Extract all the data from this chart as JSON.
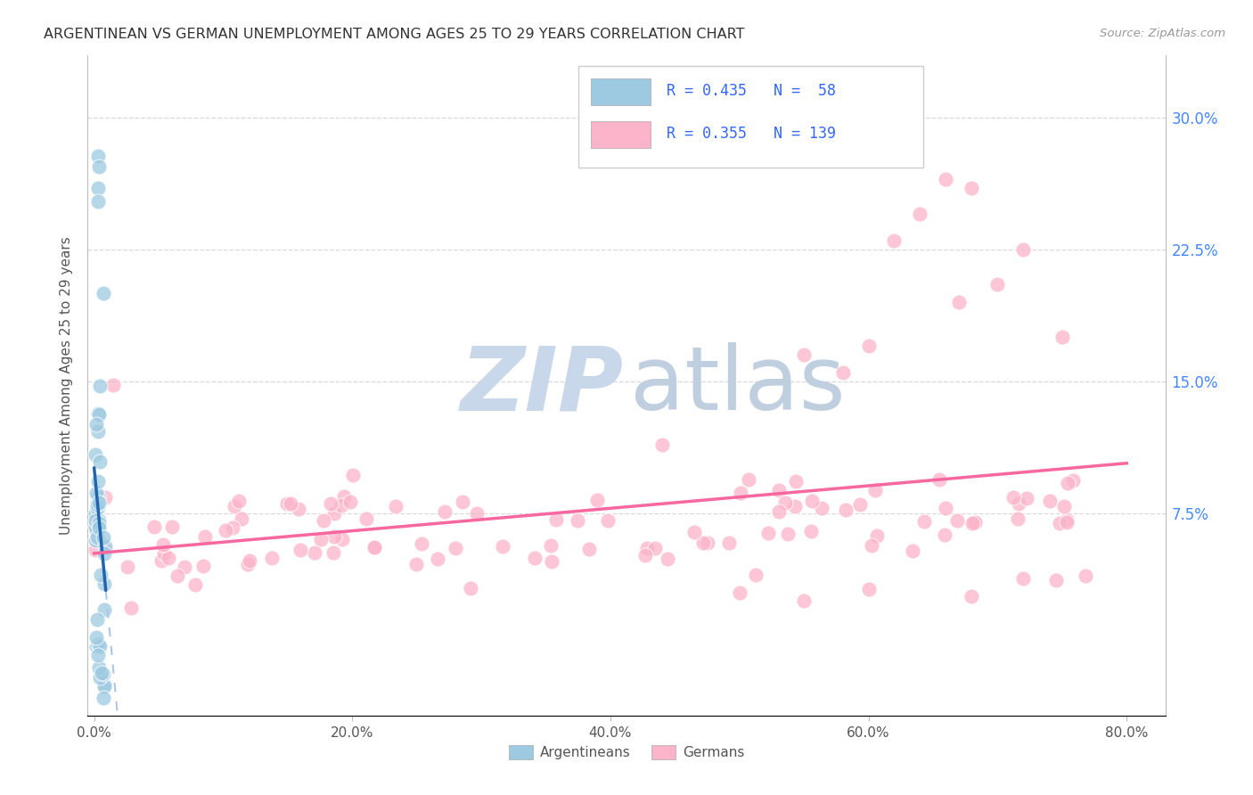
{
  "title": "ARGENTINEAN VS GERMAN UNEMPLOYMENT AMONG AGES 25 TO 29 YEARS CORRELATION CHART",
  "source": "Source: ZipAtlas.com",
  "ylabel": "Unemployment Among Ages 25 to 29 years",
  "xlim": [
    -0.005,
    0.83
  ],
  "ylim": [
    -0.04,
    0.335
  ],
  "xtick_vals": [
    0.0,
    0.2,
    0.4,
    0.6,
    0.8
  ],
  "xtick_labels": [
    "0.0%",
    "20.0%",
    "40.0%",
    "60.0%",
    "80.0%"
  ],
  "ytick_vals": [
    0.075,
    0.15,
    0.225,
    0.3
  ],
  "ytick_labels": [
    "7.5%",
    "15.0%",
    "22.5%",
    "30.0%"
  ],
  "legend_blue_r": "R = 0.435",
  "legend_blue_n": "N =  58",
  "legend_pink_r": "R = 0.355",
  "legend_pink_n": "N = 139",
  "blue_color": "#9ecae1",
  "pink_color": "#fbb4c9",
  "blue_line_color": "#2166ac",
  "pink_line_color": "#f768a1",
  "blue_dashed_color": "#aec6e8",
  "watermark_zip_color": "#c8d8ea",
  "watermark_atlas_color": "#c0cfe0",
  "title_color": "#333333",
  "source_color": "#999999",
  "ylabel_color": "#555555",
  "tick_color": "#555555",
  "right_tick_color": "#4488ff",
  "grid_color": "#d8d8d8",
  "legend_text_color": "#3366ff"
}
